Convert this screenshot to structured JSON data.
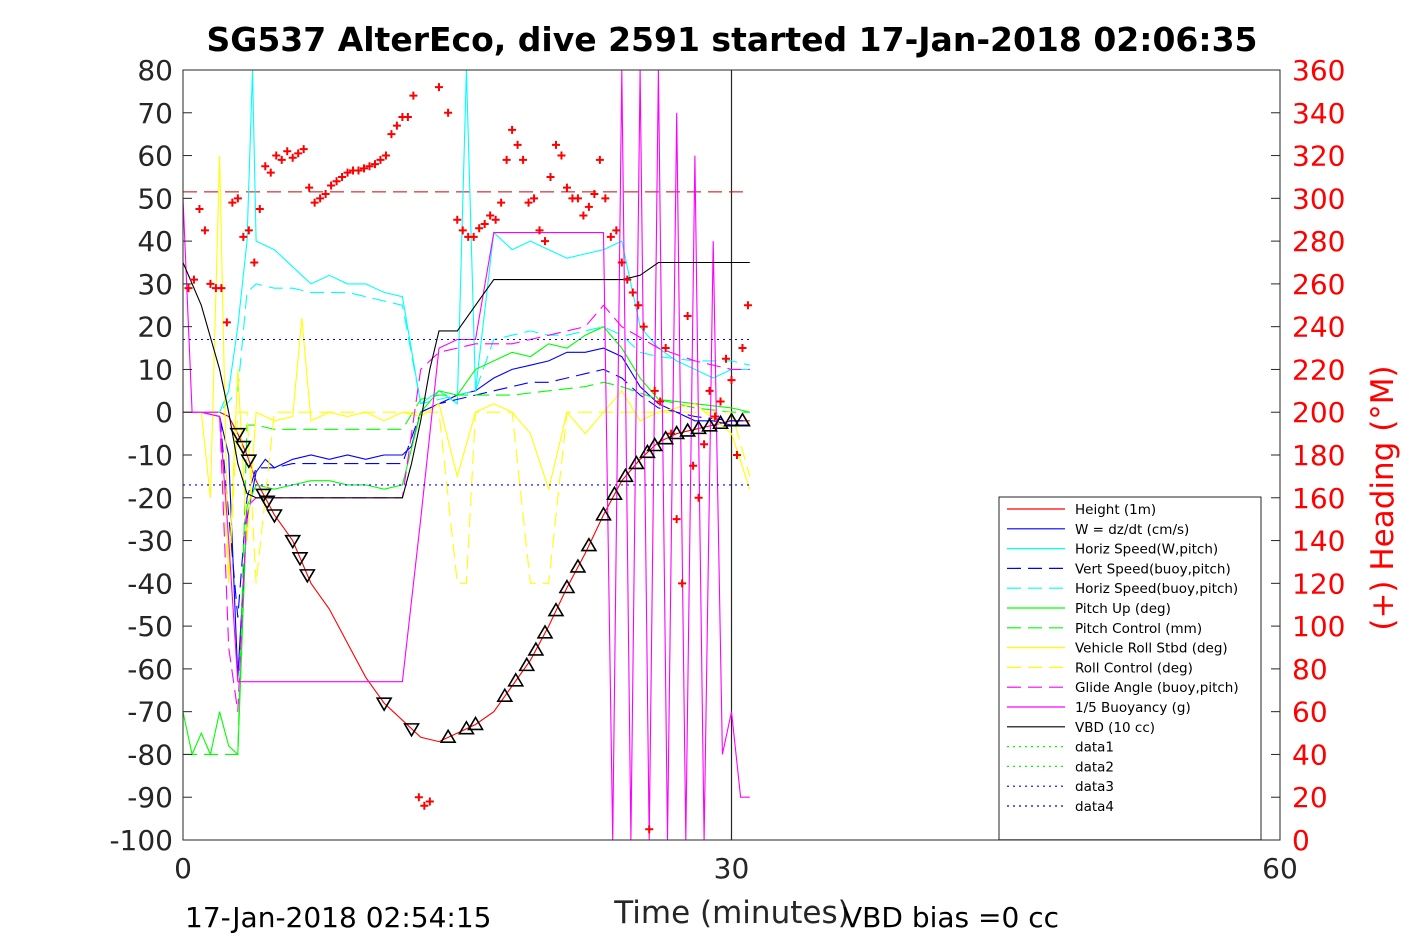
{
  "chart_data": {
    "type": "line",
    "title": "SG537 AlterEco, dive 2591 started 17-Jan-2018 02:06:35",
    "xlabel": "Time (minutes)",
    "ylabel_right": "(+) Heading (°M)",
    "xlim": [
      0,
      60
    ],
    "ylim": [
      -100,
      80
    ],
    "ylim_right": [
      0,
      360
    ],
    "xticks": [
      "0",
      "30",
      "60"
    ],
    "yticks": [
      "80",
      "70",
      "60",
      "50",
      "40",
      "30",
      "20",
      "10",
      "0",
      "-10",
      "-20",
      "-30",
      "-40",
      "-50",
      "-60",
      "-70",
      "-80",
      "-90",
      "-100"
    ],
    "yticks_right": [
      "360",
      "340",
      "320",
      "300",
      "280",
      "260",
      "240",
      "220",
      "200",
      "180",
      "160",
      "140",
      "120",
      "100",
      "80",
      "60",
      "40",
      "20",
      "0"
    ],
    "footer_left": "17-Jan-2018 02:54:15",
    "footer_right": "VBD bias =0 cc",
    "legend_position": "bottom-right",
    "series": [
      {
        "name": "Height (1m)",
        "color": "#ff0000",
        "style": "solid",
        "x": [
          0,
          1,
          2,
          2.5,
          3,
          3.5,
          4,
          4.5,
          5,
          5.5,
          6,
          6.5,
          7,
          7.5,
          8,
          9,
          10,
          11,
          12,
          13,
          14,
          15,
          16,
          17,
          18,
          19,
          20,
          21,
          22,
          23,
          24,
          25,
          26,
          27,
          28,
          29,
          30,
          31
        ],
        "y": [
          0,
          0,
          0,
          -1,
          -5,
          -10,
          -16,
          -20,
          -24,
          -27,
          -30,
          -35,
          -40,
          -43,
          -46,
          -54,
          -62,
          -68,
          -72,
          -76,
          -77,
          -75,
          -73,
          -70,
          -64,
          -58,
          -50,
          -41,
          -33,
          -24,
          -16,
          -11,
          -7,
          -5,
          -4,
          -3,
          -2,
          -2
        ]
      },
      {
        "name": "W = dz/dt (cm/s)",
        "color": "#0000ff",
        "style": "solid",
        "x": [
          0,
          1,
          2,
          2.5,
          3,
          3.5,
          4,
          4.5,
          5,
          6,
          7,
          8,
          9,
          10,
          11,
          12,
          12.5,
          13,
          14,
          15,
          16,
          17,
          18,
          19,
          20,
          21,
          22,
          23,
          24,
          25,
          26,
          27,
          28,
          29,
          30,
          31
        ],
        "y": [
          0,
          0,
          -1,
          -10,
          -62,
          -25,
          -14,
          -11,
          -13,
          -11,
          -10,
          -11,
          -10,
          -11,
          -10,
          -10,
          -8,
          0,
          2,
          4,
          5,
          8,
          10,
          11,
          12,
          14,
          14,
          15,
          13,
          6,
          2,
          0,
          -2,
          -2,
          -3,
          -3
        ]
      },
      {
        "name": "Horiz Speed(W,pitch)",
        "color": "#00ffff",
        "style": "solid",
        "x": [
          0,
          1,
          2,
          2.5,
          3,
          3.5,
          3.8,
          4,
          5,
          6,
          7,
          8,
          9,
          10,
          11,
          12,
          13,
          14,
          15,
          15.5,
          16,
          17,
          18,
          19,
          20,
          21,
          22,
          23,
          24,
          25,
          26,
          27,
          28,
          29,
          30,
          31
        ],
        "y": [
          0,
          0,
          0,
          5,
          20,
          40,
          80,
          40,
          38,
          34,
          30,
          32,
          30,
          30,
          28,
          27,
          2,
          5,
          2,
          80,
          5,
          42,
          38,
          40,
          38,
          36,
          37,
          38,
          40,
          20,
          15,
          12,
          10,
          8,
          10,
          10
        ]
      },
      {
        "name": "Vert Speed(buoy,pitch)",
        "color": "#0000ff",
        "style": "dashed",
        "x": [
          0,
          2,
          3,
          3.5,
          4,
          5,
          6,
          7,
          8,
          9,
          10,
          11,
          12,
          13,
          14,
          15,
          16,
          17,
          18,
          19,
          20,
          21,
          22,
          23,
          24,
          25,
          26,
          28,
          30,
          31
        ],
        "y": [
          0,
          0,
          -48,
          -20,
          -13,
          -13,
          -12,
          -12,
          -12,
          -12,
          -12,
          -12,
          -12,
          0,
          2,
          3,
          4,
          5,
          6,
          7,
          7,
          8,
          9,
          10,
          8,
          4,
          1,
          -1,
          -2,
          -2
        ]
      },
      {
        "name": "Horiz Speed(buoy,pitch)",
        "color": "#00ffff",
        "style": "dashed",
        "x": [
          0,
          2,
          3,
          3.5,
          4,
          5,
          6,
          7,
          8,
          9,
          10,
          11,
          12,
          13,
          14,
          15,
          16,
          17,
          18,
          19,
          20,
          21,
          22,
          23,
          24,
          25,
          26,
          28,
          30,
          31
        ],
        "y": [
          0,
          0,
          5,
          28,
          30,
          29,
          29,
          28,
          28,
          28,
          27,
          26,
          25,
          2,
          3,
          4,
          5,
          17,
          18,
          19,
          18,
          18,
          19,
          20,
          18,
          14,
          13,
          12,
          12,
          11
        ]
      },
      {
        "name": "Pitch Up (deg)",
        "color": "#00ff00",
        "style": "solid",
        "x": [
          0,
          0.5,
          1,
          1.5,
          2,
          2.5,
          3,
          3.5,
          4,
          5,
          6,
          7,
          8,
          9,
          10,
          11,
          12,
          13,
          14,
          15,
          16,
          17,
          18,
          19,
          20,
          21,
          22,
          23,
          24,
          25,
          26,
          28,
          30,
          31
        ],
        "y": [
          -70,
          -80,
          -75,
          -80,
          -70,
          -78,
          -80,
          -22,
          -17,
          -18,
          -17,
          -16,
          -16,
          -17,
          -17,
          -18,
          -17,
          0,
          5,
          4,
          10,
          12,
          14,
          13,
          16,
          15,
          18,
          20,
          15,
          8,
          3,
          2,
          1,
          0
        ]
      },
      {
        "name": "Pitch Control (mm)",
        "color": "#00ff00",
        "style": "dashed",
        "x": [
          0,
          2,
          3,
          3.5,
          4,
          5,
          7,
          9,
          11,
          12,
          13,
          14,
          16,
          18,
          20,
          22,
          23,
          24,
          26,
          28,
          30,
          31
        ],
        "y": [
          -80,
          -80,
          -80,
          -3,
          -3,
          -4,
          -4,
          -4,
          -4,
          -4,
          3,
          4,
          4,
          4,
          5,
          6,
          7,
          6,
          3,
          1,
          0,
          0
        ]
      },
      {
        "name": "Vehicle Roll Stbd (deg)",
        "color": "#ffff00",
        "style": "solid",
        "x": [
          0,
          1,
          1.5,
          2,
          2.5,
          3,
          3.5,
          4,
          5,
          6,
          6.5,
          7,
          8,
          9,
          10,
          11,
          12,
          13,
          14,
          15,
          16,
          17,
          18,
          19,
          20,
          21,
          22,
          23,
          24,
          25,
          26,
          28,
          30,
          31
        ],
        "y": [
          0,
          0,
          -20,
          60,
          -40,
          10,
          -30,
          0,
          -2,
          -1,
          22,
          -2,
          0,
          -1,
          0,
          -2,
          0,
          -1,
          2,
          -15,
          0,
          2,
          0,
          -5,
          -18,
          0,
          -5,
          0,
          5,
          -2,
          0,
          2,
          -5,
          -18
        ]
      },
      {
        "name": "Roll Control (deg)",
        "color": "#ffff00",
        "style": "dashed",
        "x": [
          0,
          1,
          2,
          2.5,
          3,
          3.5,
          4,
          5,
          7,
          9,
          11,
          12,
          13,
          14,
          15,
          15.5,
          16,
          18,
          19,
          20,
          21,
          22,
          24,
          26,
          28,
          30,
          31
        ],
        "y": [
          0,
          0,
          0,
          -40,
          0,
          0,
          -40,
          0,
          0,
          0,
          0,
          0,
          0,
          0,
          -40,
          -40,
          0,
          0,
          -40,
          -40,
          0,
          0,
          0,
          0,
          0,
          0,
          -15
        ]
      },
      {
        "name": "Glide Angle (buoy,pitch)",
        "color": "#ff00ff",
        "style": "dashed",
        "x": [
          0,
          2,
          2.5,
          3,
          3.5,
          4,
          5,
          7,
          9,
          11,
          12,
          13,
          14,
          15,
          16,
          17,
          18,
          20,
          22,
          23,
          24,
          26,
          28,
          30,
          31
        ],
        "y": [
          0,
          0,
          -55,
          -70,
          -22,
          -20,
          -20,
          -20,
          -20,
          -20,
          -20,
          10,
          14,
          15,
          16,
          16,
          16,
          18,
          20,
          25,
          20,
          15,
          12,
          10,
          10
        ]
      },
      {
        "name": "1/5 Buoyancy (g)",
        "color": "#ff00ff",
        "style": "solid",
        "x": [
          0,
          0.5,
          1,
          2,
          2.5,
          3,
          3.5,
          4,
          5,
          7,
          9,
          11,
          12,
          13,
          14,
          15,
          16,
          17,
          18,
          20,
          22,
          23,
          23.5,
          24,
          24.5,
          25,
          25.5,
          26,
          26.5,
          27,
          27.5,
          28,
          28.5,
          29,
          29.5,
          30,
          30.5,
          31
        ],
        "y": [
          50,
          0,
          0,
          -1,
          -30,
          -63,
          -63,
          -63,
          -63,
          -63,
          -63,
          -63,
          -63,
          -25,
          15,
          17,
          17,
          42,
          42,
          42,
          42,
          42,
          -100,
          80,
          -100,
          80,
          -100,
          80,
          -100,
          70,
          -100,
          60,
          -100,
          40,
          -80,
          -70,
          -90,
          -90
        ]
      },
      {
        "name": "VBD (10 cc)",
        "color": "#000000",
        "style": "solid",
        "x": [
          0,
          1,
          2,
          2.5,
          3,
          3.5,
          4,
          5,
          7,
          9,
          11,
          11.5,
          12,
          12.5,
          13,
          13.5,
          14,
          14.5,
          15,
          16,
          17,
          18,
          20,
          22,
          24,
          25,
          26,
          27,
          28,
          30,
          31
        ],
        "y": [
          35,
          25,
          10,
          0,
          -12,
          -19,
          -20,
          -20,
          -20,
          -20,
          -20,
          -20,
          -20,
          -12,
          -2,
          10,
          19,
          19,
          19,
          25,
          31,
          31,
          31,
          31,
          31,
          32,
          35,
          35,
          35,
          35,
          35
        ]
      },
      {
        "name": "data1",
        "color": "#00ff00",
        "style": "dotted",
        "x": [],
        "y": []
      },
      {
        "name": "data2",
        "color": "#00ff00",
        "style": "dotted",
        "x": [],
        "y": []
      },
      {
        "name": "data3",
        "color": "#0000ff",
        "style": "dotted",
        "x": [
          0,
          31
        ],
        "y": [
          -17,
          -17
        ]
      },
      {
        "name": "data4",
        "color": "#0000ff",
        "style": "dotted",
        "x": [
          0,
          31
        ],
        "y": [
          17,
          17
        ]
      }
    ],
    "reference_lines": [
      {
        "color": "#cc0000",
        "style": "dashed",
        "axis": "right",
        "x": [
          0,
          31
        ],
        "value": 303
      }
    ],
    "heading_points": {
      "color": "#ff0000",
      "marker": "plus",
      "x": [
        0.3,
        0.6,
        0.9,
        1.2,
        1.5,
        1.8,
        2.1,
        2.4,
        2.7,
        3.0,
        3.3,
        3.6,
        3.9,
        4.2,
        4.5,
        4.8,
        5.1,
        5.4,
        5.7,
        6.0,
        6.3,
        6.6,
        6.9,
        7.2,
        7.5,
        7.8,
        8.1,
        8.4,
        8.7,
        9.0,
        9.3,
        9.6,
        9.9,
        10.2,
        10.5,
        10.8,
        11.1,
        11.4,
        11.7,
        12.0,
        12.3,
        12.6,
        12.9,
        13.2,
        13.5,
        14.0,
        14.5,
        15.0,
        15.3,
        15.6,
        15.9,
        16.2,
        16.5,
        16.8,
        17.1,
        17.4,
        17.7,
        18.0,
        18.3,
        18.6,
        18.9,
        19.2,
        19.5,
        19.8,
        20.1,
        20.4,
        20.7,
        21.0,
        21.3,
        21.6,
        21.9,
        22.2,
        22.5,
        22.8,
        23.1,
        23.4,
        23.7,
        24.0,
        24.3,
        24.6,
        24.9,
        25.2,
        25.5,
        25.8,
        26.1,
        26.4,
        26.7,
        27.0,
        27.3,
        27.6,
        27.9,
        28.2,
        28.5,
        28.8,
        29.1,
        29.4,
        29.7,
        30.0,
        30.3,
        30.6,
        30.9
      ],
      "y": [
        258,
        262,
        295,
        285,
        260,
        258,
        258,
        242,
        298,
        300,
        282,
        285,
        270,
        295,
        315,
        312,
        320,
        318,
        322,
        319,
        321,
        323,
        305,
        298,
        300,
        302,
        306,
        308,
        310,
        312,
        313,
        313,
        314,
        315,
        316,
        318,
        320,
        330,
        334,
        338,
        338,
        348,
        20,
        16,
        18,
        352,
        340,
        290,
        285,
        282,
        282,
        286,
        288,
        292,
        290,
        298,
        318,
        332,
        325,
        318,
        298,
        300,
        285,
        280,
        310,
        325,
        320,
        305,
        300,
        300,
        292,
        296,
        302,
        318,
        300,
        282,
        285,
        270,
        262,
        256,
        250,
        240,
        5,
        210,
        205,
        230,
        190,
        150,
        120,
        245,
        175,
        160,
        185,
        210,
        198,
        205,
        225,
        215,
        180,
        230,
        250
      ]
    }
  }
}
